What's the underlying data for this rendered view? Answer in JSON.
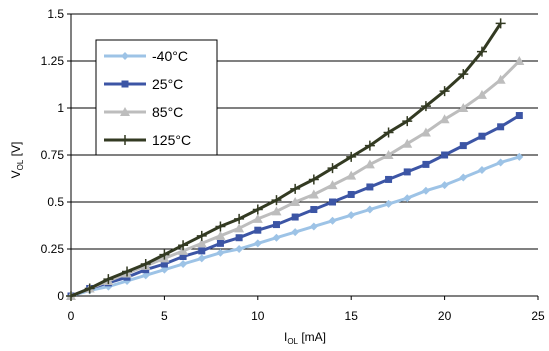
{
  "chart_data": {
    "type": "line",
    "xlabel": {
      "main": "I",
      "sub": "OL",
      "unit": " [mA]"
    },
    "ylabel": {
      "main": "V",
      "sub": "OL",
      "unit": " [V]"
    },
    "xlim": [
      0,
      25
    ],
    "ylim": [
      0,
      1.5
    ],
    "xticks": [
      "0",
      "5",
      "10",
      "15",
      "20",
      "25"
    ],
    "yticks": [
      "0",
      "0.25",
      "0.5",
      "0.75",
      "1",
      "1.25",
      "1.5"
    ],
    "grid": "horizontal",
    "legend_position": "top-left",
    "x": [
      0,
      1,
      2,
      3,
      4,
      5,
      6,
      7,
      8,
      9,
      10,
      11,
      12,
      13,
      14,
      15,
      16,
      17,
      18,
      19,
      20,
      21,
      22,
      23,
      24
    ],
    "series": [
      {
        "name": "-40°C",
        "color": "#9dc3e6",
        "marker": "diamond",
        "x": [
          0,
          1,
          2,
          3,
          4,
          5,
          6,
          7,
          8,
          9,
          10,
          11,
          12,
          13,
          14,
          15,
          16,
          17,
          18,
          19,
          20,
          21,
          22,
          23,
          24
        ],
        "values": [
          0,
          0.03,
          0.05,
          0.08,
          0.11,
          0.14,
          0.17,
          0.2,
          0.23,
          0.25,
          0.28,
          0.31,
          0.34,
          0.37,
          0.4,
          0.43,
          0.46,
          0.49,
          0.52,
          0.56,
          0.59,
          0.63,
          0.67,
          0.71,
          0.74
        ]
      },
      {
        "name": "25°C",
        "color": "#3c55a5",
        "marker": "square",
        "x": [
          0,
          1,
          2,
          3,
          4,
          5,
          6,
          7,
          8,
          9,
          10,
          11,
          12,
          13,
          14,
          15,
          16,
          17,
          18,
          19,
          20,
          21,
          22,
          23,
          24
        ],
        "values": [
          0,
          0.04,
          0.07,
          0.1,
          0.14,
          0.17,
          0.21,
          0.24,
          0.28,
          0.31,
          0.35,
          0.38,
          0.42,
          0.46,
          0.5,
          0.54,
          0.58,
          0.62,
          0.66,
          0.7,
          0.75,
          0.8,
          0.85,
          0.9,
          0.96
        ]
      },
      {
        "name": "85°C",
        "color": "#bdbdbd",
        "marker": "triangle",
        "x": [
          0,
          1,
          2,
          3,
          4,
          5,
          6,
          7,
          8,
          9,
          10,
          11,
          12,
          13,
          14,
          15,
          16,
          17,
          18,
          19,
          20,
          21,
          22,
          23,
          24
        ],
        "values": [
          0,
          0.04,
          0.08,
          0.12,
          0.16,
          0.2,
          0.24,
          0.28,
          0.32,
          0.36,
          0.41,
          0.45,
          0.5,
          0.54,
          0.59,
          0.64,
          0.7,
          0.75,
          0.81,
          0.87,
          0.94,
          1.0,
          1.07,
          1.15,
          1.25
        ]
      },
      {
        "name": "125°C",
        "color": "#333a22",
        "marker": "plus",
        "x": [
          0,
          1,
          2,
          3,
          4,
          5,
          6,
          7,
          8,
          9,
          10,
          11,
          12,
          13,
          14,
          15,
          16,
          17,
          18,
          19,
          20,
          21,
          22,
          23
        ],
        "values": [
          0,
          0.04,
          0.09,
          0.13,
          0.17,
          0.22,
          0.27,
          0.32,
          0.37,
          0.41,
          0.46,
          0.51,
          0.57,
          0.62,
          0.68,
          0.74,
          0.8,
          0.87,
          0.93,
          1.01,
          1.09,
          1.18,
          1.3,
          1.45
        ]
      }
    ]
  }
}
